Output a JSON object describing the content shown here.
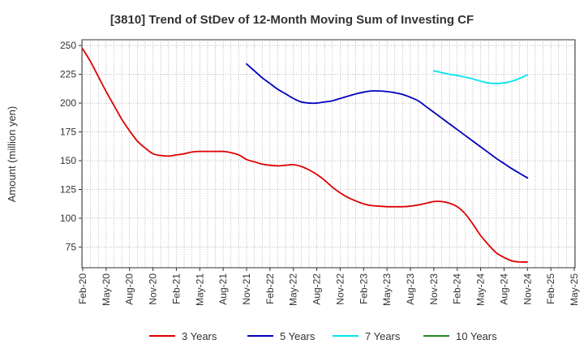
{
  "chart_data": {
    "type": "line",
    "title": "[3810]  Trend of StDev of 12-Month Moving Sum of Investing CF",
    "ylabel": "Amount (million yen)",
    "xlabel": "",
    "ylim": [
      57,
      255
    ],
    "yticks": [
      75,
      100,
      125,
      150,
      175,
      200,
      225,
      250
    ],
    "x_start": "2020-02",
    "x_end": "2025-05",
    "x_ticks": [
      "Feb-20",
      "May-20",
      "Aug-20",
      "Nov-20",
      "Feb-21",
      "May-21",
      "Aug-21",
      "Nov-21",
      "Feb-22",
      "May-22",
      "Aug-22",
      "Nov-22",
      "Feb-23",
      "May-23",
      "Aug-23",
      "Nov-23",
      "Feb-24",
      "May-24",
      "Aug-24",
      "Nov-24",
      "Feb-25",
      "May-25"
    ],
    "grid": true,
    "legend_position": "bottom",
    "series": [
      {
        "name": "3 Years",
        "color": "#dd0000",
        "points": [
          [
            "2020-02",
            247
          ],
          [
            "2020-03",
            236
          ],
          [
            "2020-04",
            223
          ],
          [
            "2020-05",
            210
          ],
          [
            "2020-06",
            198
          ],
          [
            "2020-07",
            186
          ],
          [
            "2020-08",
            176
          ],
          [
            "2020-09",
            167
          ],
          [
            "2020-10",
            161
          ],
          [
            "2020-11",
            156
          ],
          [
            "2020-12",
            154.5
          ],
          [
            "2021-01",
            154
          ],
          [
            "2021-02",
            155
          ],
          [
            "2021-03",
            156
          ],
          [
            "2021-04",
            157.5
          ],
          [
            "2021-05",
            158
          ],
          [
            "2021-06",
            158
          ],
          [
            "2021-07",
            158
          ],
          [
            "2021-08",
            158
          ],
          [
            "2021-09",
            157
          ],
          [
            "2021-10",
            155
          ],
          [
            "2021-11",
            151
          ],
          [
            "2021-12",
            149
          ],
          [
            "2022-01",
            147
          ],
          [
            "2022-02",
            146
          ],
          [
            "2022-03",
            145.5
          ],
          [
            "2022-04",
            146
          ],
          [
            "2022-05",
            146.5
          ],
          [
            "2022-06",
            145
          ],
          [
            "2022-07",
            142
          ],
          [
            "2022-08",
            138
          ],
          [
            "2022-09",
            133
          ],
          [
            "2022-10",
            127
          ],
          [
            "2022-11",
            122
          ],
          [
            "2022-12",
            118
          ],
          [
            "2023-01",
            115
          ],
          [
            "2023-02",
            112.5
          ],
          [
            "2023-03",
            111
          ],
          [
            "2023-04",
            110.5
          ],
          [
            "2023-05",
            110
          ],
          [
            "2023-06",
            110
          ],
          [
            "2023-07",
            110
          ],
          [
            "2023-08",
            110.5
          ],
          [
            "2023-09",
            111.5
          ],
          [
            "2023-10",
            113
          ],
          [
            "2023-11",
            114.5
          ],
          [
            "2023-12",
            114.5
          ],
          [
            "2024-01",
            113
          ],
          [
            "2024-02",
            110
          ],
          [
            "2024-03",
            104
          ],
          [
            "2024-04",
            95
          ],
          [
            "2024-05",
            85
          ],
          [
            "2024-06",
            77
          ],
          [
            "2024-07",
            70
          ],
          [
            "2024-08",
            66
          ],
          [
            "2024-09",
            63
          ],
          [
            "2024-10",
            62
          ],
          [
            "2024-11",
            62
          ]
        ]
      },
      {
        "name": "5 Years",
        "color": "#0000bb",
        "points": [
          [
            "2021-11",
            234
          ],
          [
            "2021-12",
            228
          ],
          [
            "2022-01",
            222
          ],
          [
            "2022-02",
            217
          ],
          [
            "2022-03",
            212
          ],
          [
            "2022-04",
            208
          ],
          [
            "2022-05",
            204
          ],
          [
            "2022-06",
            201
          ],
          [
            "2022-07",
            200
          ],
          [
            "2022-08",
            200
          ],
          [
            "2022-09",
            201
          ],
          [
            "2022-10",
            202
          ],
          [
            "2022-11",
            204
          ],
          [
            "2022-12",
            206
          ],
          [
            "2023-01",
            208
          ],
          [
            "2023-02",
            209.5
          ],
          [
            "2023-03",
            210.5
          ],
          [
            "2023-04",
            210.5
          ],
          [
            "2023-05",
            210
          ],
          [
            "2023-06",
            209
          ],
          [
            "2023-07",
            207.5
          ],
          [
            "2023-08",
            205
          ],
          [
            "2023-09",
            202
          ],
          [
            "2023-10",
            197
          ],
          [
            "2023-11",
            192
          ],
          [
            "2023-12",
            187
          ],
          [
            "2024-01",
            182
          ],
          [
            "2024-02",
            177
          ],
          [
            "2024-03",
            172
          ],
          [
            "2024-04",
            167
          ],
          [
            "2024-05",
            162
          ],
          [
            "2024-06",
            157
          ],
          [
            "2024-07",
            152
          ],
          [
            "2024-08",
            147.5
          ],
          [
            "2024-09",
            143
          ],
          [
            "2024-10",
            139
          ],
          [
            "2024-11",
            135
          ]
        ]
      },
      {
        "name": "7 Years",
        "color": "#00e5ee",
        "points": [
          [
            "2023-11",
            228
          ],
          [
            "2023-12",
            226.5
          ],
          [
            "2024-01",
            225
          ],
          [
            "2024-02",
            224
          ],
          [
            "2024-03",
            222.5
          ],
          [
            "2024-04",
            221
          ],
          [
            "2024-05",
            219
          ],
          [
            "2024-06",
            217.5
          ],
          [
            "2024-07",
            217
          ],
          [
            "2024-08",
            217.5
          ],
          [
            "2024-09",
            219
          ],
          [
            "2024-10",
            221.5
          ],
          [
            "2024-11",
            224.5
          ]
        ]
      },
      {
        "name": "10 Years",
        "color": "#228b22",
        "points": []
      }
    ]
  }
}
